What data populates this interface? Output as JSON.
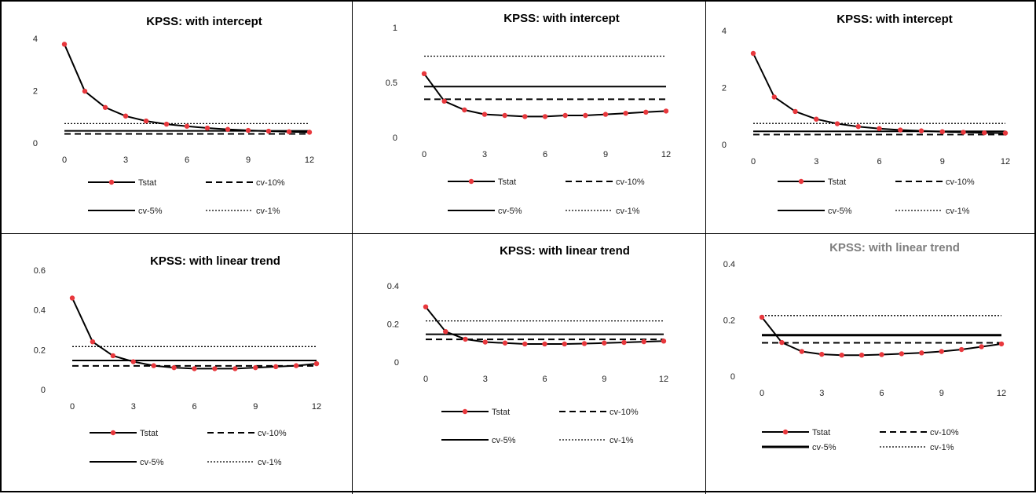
{
  "page": {
    "background": "#ffffff",
    "border_color": "#000000"
  },
  "legend_labels": {
    "tstat": "Tstat",
    "cv10": "cv-10%",
    "cv5": "cv-5%",
    "cv1": "cv-1%"
  },
  "colors": {
    "tstat_line": "#000000",
    "tstat_marker": "#e8383d",
    "cv_lines": "#000000"
  },
  "chart_data": [
    {
      "type": "line",
      "title": "KPSS: with intercept",
      "title_color": "#000000",
      "xlabel": "",
      "ylabel": "",
      "x": [
        0,
        1,
        2,
        3,
        4,
        5,
        6,
        7,
        8,
        9,
        10,
        11,
        12
      ],
      "xticks": [
        "0",
        "3",
        "6",
        "9",
        "12"
      ],
      "ylim": [
        0,
        4
      ],
      "yticks": [
        "0",
        "2",
        "4"
      ],
      "series": [
        {
          "name": "Tstat",
          "values": [
            3.78,
            1.98,
            1.36,
            1.03,
            0.84,
            0.72,
            0.64,
            0.57,
            0.52,
            0.48,
            0.45,
            0.43,
            0.41
          ]
        },
        {
          "name": "cv-10%",
          "values": [
            0.347,
            0.347,
            0.347,
            0.347,
            0.347,
            0.347,
            0.347,
            0.347,
            0.347,
            0.347,
            0.347,
            0.347,
            0.347
          ]
        },
        {
          "name": "cv-5%",
          "values": [
            0.463,
            0.463,
            0.463,
            0.463,
            0.463,
            0.463,
            0.463,
            0.463,
            0.463,
            0.463,
            0.463,
            0.463,
            0.463
          ]
        },
        {
          "name": "cv-1%",
          "values": [
            0.739,
            0.739,
            0.739,
            0.739,
            0.739,
            0.739,
            0.739,
            0.739,
            0.739,
            0.739,
            0.739,
            0.739,
            0.739
          ]
        }
      ],
      "legend": "bottom"
    },
    {
      "type": "line",
      "title": "KPSS: with intercept",
      "title_color": "#000000",
      "xlabel": "",
      "ylabel": "",
      "x": [
        0,
        1,
        2,
        3,
        4,
        5,
        6,
        7,
        8,
        9,
        10,
        11,
        12
      ],
      "xticks": [
        "0",
        "3",
        "6",
        "9",
        "12"
      ],
      "ylim": [
        0,
        1
      ],
      "yticks": [
        "0",
        "0.5",
        "1"
      ],
      "series": [
        {
          "name": "Tstat",
          "values": [
            0.58,
            0.33,
            0.25,
            0.21,
            0.2,
            0.19,
            0.19,
            0.2,
            0.2,
            0.21,
            0.22,
            0.23,
            0.24
          ]
        },
        {
          "name": "cv-10%",
          "values": [
            0.347,
            0.347,
            0.347,
            0.347,
            0.347,
            0.347,
            0.347,
            0.347,
            0.347,
            0.347,
            0.347,
            0.347,
            0.347
          ]
        },
        {
          "name": "cv-5%",
          "values": [
            0.463,
            0.463,
            0.463,
            0.463,
            0.463,
            0.463,
            0.463,
            0.463,
            0.463,
            0.463,
            0.463,
            0.463,
            0.463
          ]
        },
        {
          "name": "cv-1%",
          "values": [
            0.739,
            0.739,
            0.739,
            0.739,
            0.739,
            0.739,
            0.739,
            0.739,
            0.739,
            0.739,
            0.739,
            0.739,
            0.739
          ]
        }
      ],
      "legend": "bottom"
    },
    {
      "type": "line",
      "title": "KPSS: with intercept",
      "title_color": "#000000",
      "xlabel": "",
      "ylabel": "",
      "x": [
        0,
        1,
        2,
        3,
        4,
        5,
        6,
        7,
        8,
        9,
        10,
        11,
        12
      ],
      "xticks": [
        "0",
        "3",
        "6",
        "9",
        "12"
      ],
      "ylim": [
        0,
        4
      ],
      "yticks": [
        "0",
        "2",
        "4"
      ],
      "series": [
        {
          "name": "Tstat",
          "values": [
            3.2,
            1.67,
            1.16,
            0.89,
            0.73,
            0.63,
            0.56,
            0.51,
            0.48,
            0.45,
            0.43,
            0.41,
            0.4
          ]
        },
        {
          "name": "cv-10%",
          "values": [
            0.347,
            0.347,
            0.347,
            0.347,
            0.347,
            0.347,
            0.347,
            0.347,
            0.347,
            0.347,
            0.347,
            0.347,
            0.347
          ]
        },
        {
          "name": "cv-5%",
          "values": [
            0.463,
            0.463,
            0.463,
            0.463,
            0.463,
            0.463,
            0.463,
            0.463,
            0.463,
            0.463,
            0.463,
            0.463,
            0.463
          ]
        },
        {
          "name": "cv-1%",
          "values": [
            0.739,
            0.739,
            0.739,
            0.739,
            0.739,
            0.739,
            0.739,
            0.739,
            0.739,
            0.739,
            0.739,
            0.739,
            0.739
          ]
        }
      ],
      "legend": "bottom"
    },
    {
      "type": "line",
      "title": "KPSS: with linear trend",
      "title_color": "#000000",
      "xlabel": "",
      "ylabel": "",
      "x": [
        0,
        1,
        2,
        3,
        4,
        5,
        6,
        7,
        8,
        9,
        10,
        11,
        12
      ],
      "xticks": [
        "0",
        "3",
        "6",
        "9",
        "12"
      ],
      "ylim": [
        0,
        0.6
      ],
      "yticks": [
        "0",
        "0.2",
        "0.4",
        "0.6"
      ],
      "series": [
        {
          "name": "Tstat",
          "values": [
            0.46,
            0.24,
            0.17,
            0.14,
            0.12,
            0.11,
            0.105,
            0.105,
            0.105,
            0.11,
            0.115,
            0.12,
            0.13
          ]
        },
        {
          "name": "cv-10%",
          "values": [
            0.119,
            0.119,
            0.119,
            0.119,
            0.119,
            0.119,
            0.119,
            0.119,
            0.119,
            0.119,
            0.119,
            0.119,
            0.119
          ]
        },
        {
          "name": "cv-5%",
          "values": [
            0.146,
            0.146,
            0.146,
            0.146,
            0.146,
            0.146,
            0.146,
            0.146,
            0.146,
            0.146,
            0.146,
            0.146,
            0.146
          ]
        },
        {
          "name": "cv-1%",
          "values": [
            0.216,
            0.216,
            0.216,
            0.216,
            0.216,
            0.216,
            0.216,
            0.216,
            0.216,
            0.216,
            0.216,
            0.216,
            0.216
          ]
        }
      ],
      "legend": "bottom"
    },
    {
      "type": "line",
      "title": "KPSS: with linear trend",
      "title_color": "#000000",
      "xlabel": "",
      "ylabel": "",
      "x": [
        0,
        1,
        2,
        3,
        4,
        5,
        6,
        7,
        8,
        9,
        10,
        11,
        12
      ],
      "xticks": [
        "0",
        "3",
        "6",
        "9",
        "12"
      ],
      "ylim": [
        0,
        0.4
      ],
      "yticks": [
        "0",
        "0.2",
        "0.4"
      ],
      "series": [
        {
          "name": "Tstat",
          "values": [
            0.29,
            0.16,
            0.12,
            0.105,
            0.1,
            0.095,
            0.095,
            0.095,
            0.097,
            0.1,
            0.103,
            0.107,
            0.11
          ]
        },
        {
          "name": "cv-10%",
          "values": [
            0.119,
            0.119,
            0.119,
            0.119,
            0.119,
            0.119,
            0.119,
            0.119,
            0.119,
            0.119,
            0.119,
            0.119,
            0.119
          ]
        },
        {
          "name": "cv-5%",
          "values": [
            0.146,
            0.146,
            0.146,
            0.146,
            0.146,
            0.146,
            0.146,
            0.146,
            0.146,
            0.146,
            0.146,
            0.146,
            0.146
          ]
        },
        {
          "name": "cv-1%",
          "values": [
            0.216,
            0.216,
            0.216,
            0.216,
            0.216,
            0.216,
            0.216,
            0.216,
            0.216,
            0.216,
            0.216,
            0.216,
            0.216
          ]
        }
      ],
      "legend": "bottom"
    },
    {
      "type": "line",
      "title": "KPSS: with linear trend",
      "title_color": "#7f7f7f",
      "xlabel": "",
      "ylabel": "",
      "x": [
        0,
        1,
        2,
        3,
        4,
        5,
        6,
        7,
        8,
        9,
        10,
        11,
        12
      ],
      "xticks": [
        "0",
        "3",
        "6",
        "9",
        "12"
      ],
      "ylim": [
        0,
        0.4
      ],
      "yticks": [
        "0",
        "0.2",
        "0.4"
      ],
      "series": [
        {
          "name": "Tstat",
          "values": [
            0.21,
            0.12,
            0.088,
            0.078,
            0.075,
            0.075,
            0.077,
            0.08,
            0.083,
            0.088,
            0.095,
            0.105,
            0.115
          ]
        },
        {
          "name": "cv-10%",
          "values": [
            0.119,
            0.119,
            0.119,
            0.119,
            0.119,
            0.119,
            0.119,
            0.119,
            0.119,
            0.119,
            0.119,
            0.119,
            0.119
          ]
        },
        {
          "name": "cv-5%",
          "values": [
            0.146,
            0.146,
            0.146,
            0.146,
            0.146,
            0.146,
            0.146,
            0.146,
            0.146,
            0.146,
            0.146,
            0.146,
            0.146
          ]
        },
        {
          "name": "cv-1%",
          "values": [
            0.216,
            0.216,
            0.216,
            0.216,
            0.216,
            0.216,
            0.216,
            0.216,
            0.216,
            0.216,
            0.216,
            0.216,
            0.216
          ]
        }
      ],
      "legend": "bottom"
    }
  ]
}
